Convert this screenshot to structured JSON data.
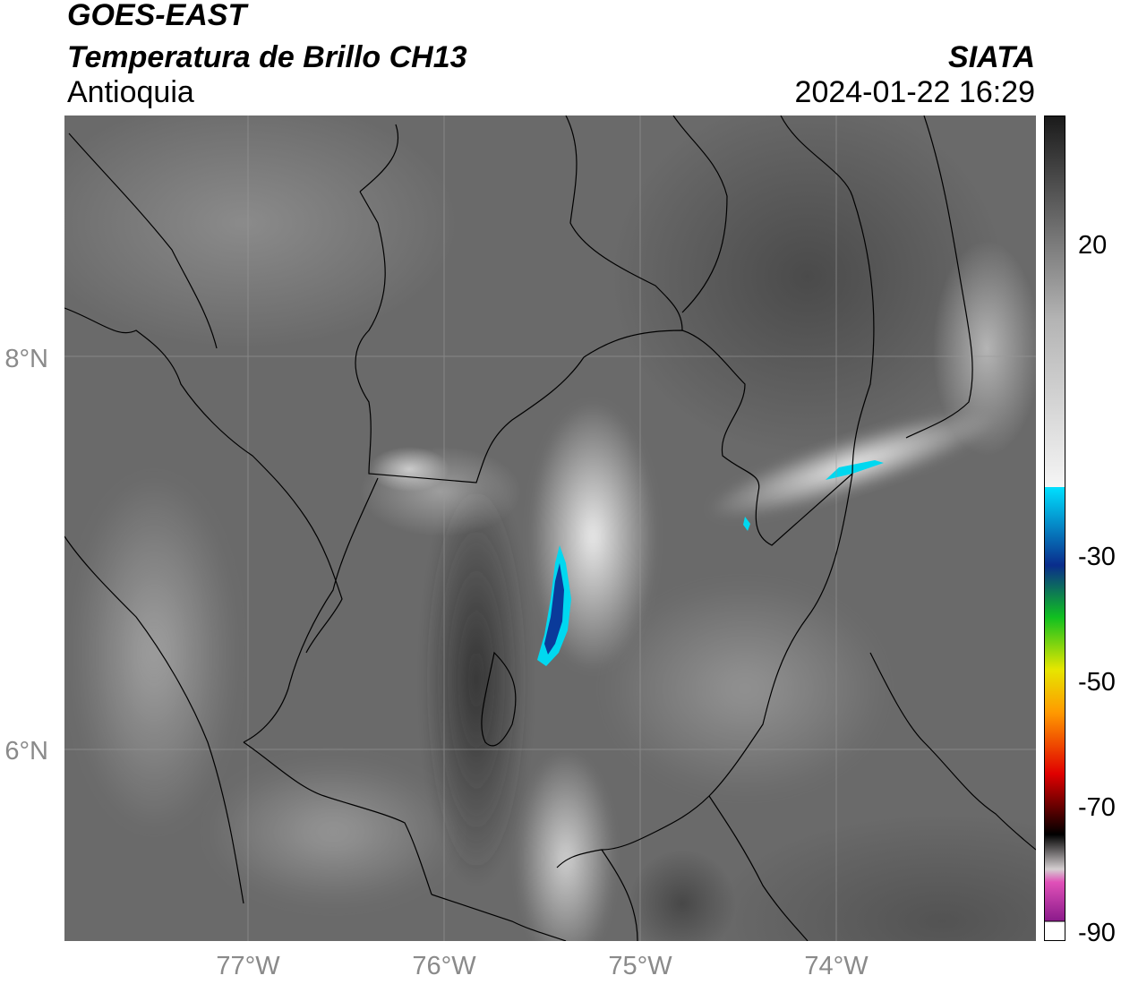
{
  "header": {
    "satellite": "GOES-EAST",
    "product": "Temperatura de Brillo CH13",
    "region": "Antioquia",
    "agency": "SIATA",
    "timestamp": "2024-01-22 16:29"
  },
  "map": {
    "latitude_labels": [
      "8°N",
      "6°N"
    ],
    "longitude_labels": [
      "77°W",
      "76°W",
      "75°W",
      "74°W"
    ],
    "gridlines": true
  },
  "colorbar": {
    "tick_labels": [
      "20",
      "-30",
      "-50",
      "-70",
      "-90"
    ],
    "colors": {
      "warm_gray_top": "#1a1a1a",
      "mid_gray": "#b4b4b4",
      "white": "#f5f5f5",
      "cyan": "#00e0ff",
      "blue": "#0a2d8c",
      "green": "#10c020",
      "yellow": "#e6e600",
      "orange": "#ff9900",
      "red": "#e00000",
      "dark_red": "#400000",
      "black": "#000000",
      "light_gray": "#d4ced0",
      "pink": "#e050b8",
      "purple": "#8a1a8a"
    }
  }
}
